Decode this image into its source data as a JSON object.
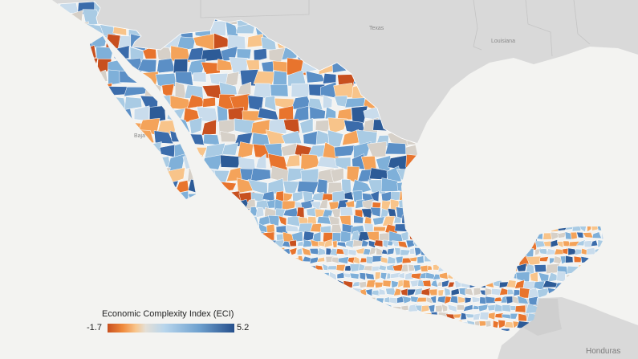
{
  "map": {
    "background_labels": [
      "Texas",
      "Louisiana",
      "Baja",
      "Honduras"
    ],
    "colors": {
      "ocean": "#f3f3f1",
      "neighbor_land": "#d9d9d9",
      "borders": "#ffffff",
      "low": "#c8501f",
      "mid_low": "#f4b06a",
      "neutral": "#d6d0c8",
      "mid_high": "#a9cbe4",
      "high": "#2d5b97"
    }
  },
  "legend": {
    "title": "Economic Complexity Index (ECI)",
    "min_label": "-1.7",
    "max_label": "5.2",
    "min_value": -1.7,
    "max_value": 5.2
  }
}
